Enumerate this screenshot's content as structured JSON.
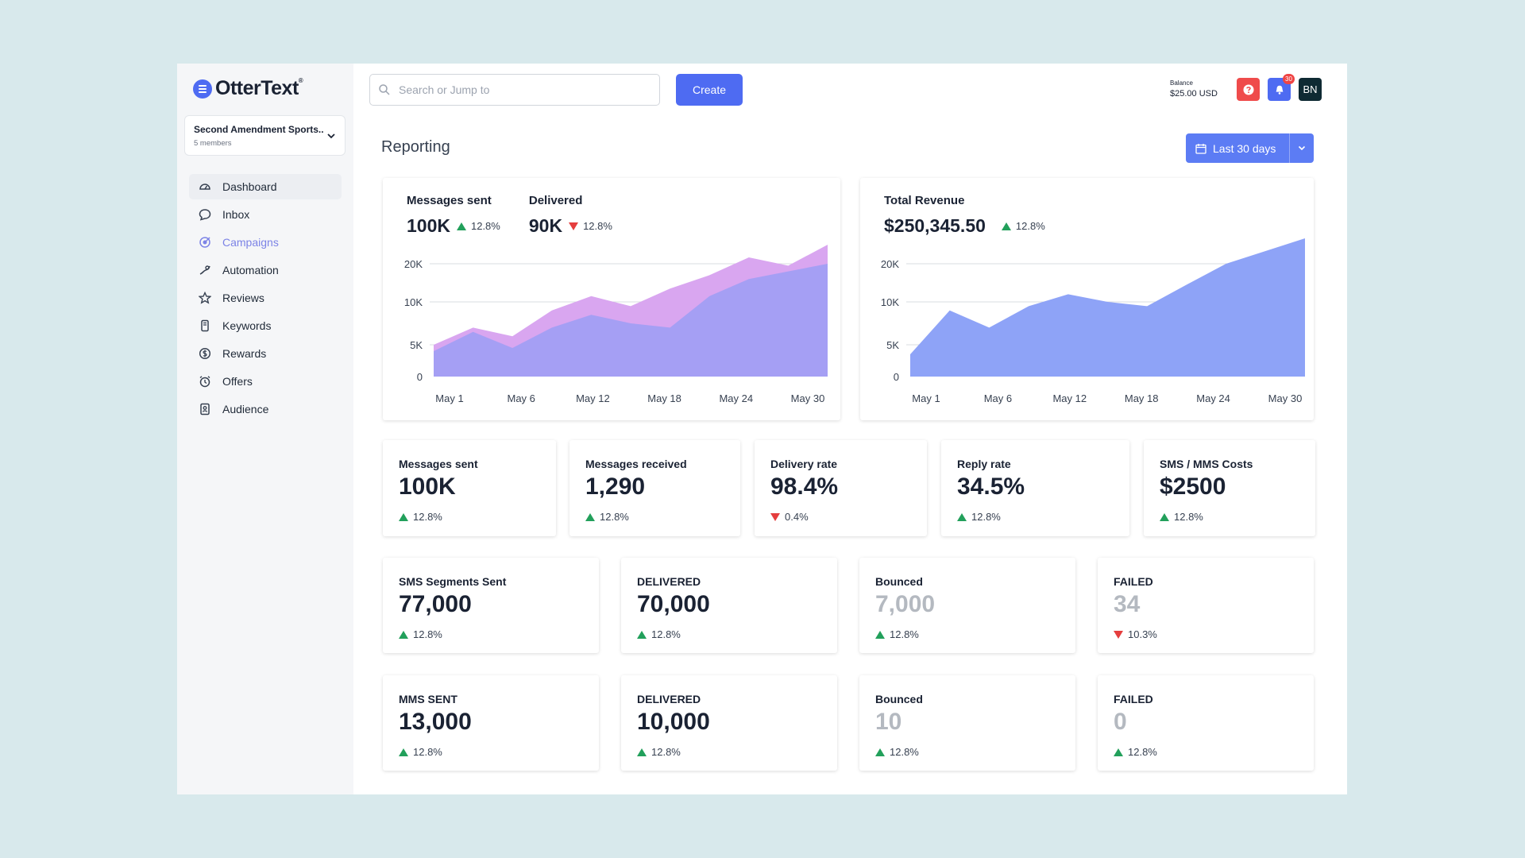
{
  "brand": {
    "name": "OtterText",
    "mark": "®"
  },
  "org": {
    "name": "Second Amendment Sports..",
    "members": "5 members"
  },
  "sidebar": {
    "items": [
      {
        "label": "Dashboard",
        "icon": "gauge-icon"
      },
      {
        "label": "Inbox",
        "icon": "chat-bubble-icon"
      },
      {
        "label": "Campaigns",
        "icon": "target-icon"
      },
      {
        "label": "Automation",
        "icon": "automation-icon"
      },
      {
        "label": "Reviews",
        "icon": "star-icon"
      },
      {
        "label": "Keywords",
        "icon": "phone-icon"
      },
      {
        "label": "Rewards",
        "icon": "dollar-coin-icon"
      },
      {
        "label": "Offers",
        "icon": "alarm-clock-icon"
      },
      {
        "label": "Audience",
        "icon": "contacts-book-icon"
      }
    ]
  },
  "topbar": {
    "search_placeholder": "Search or Jump to",
    "create_label": "Create",
    "balance_label": "Balance",
    "balance_value": "$25.00 USD",
    "notification_count": "30",
    "avatar_initials": "BN"
  },
  "page": {
    "title": "Reporting",
    "date_range": "Last 30 days"
  },
  "colors": {
    "accent": "#4e6bf2",
    "up": "#22a05b",
    "down": "#e53e3e",
    "series_light": "#d9a6f0",
    "series_dark": "#9b9df5",
    "revenue_fill": "#8ea3f7"
  },
  "messages_chart": {
    "metrics": [
      {
        "label": "Messages sent",
        "value": "100K",
        "change": "12.8%",
        "direction": "up"
      },
      {
        "label": "Delivered",
        "value": "90K",
        "change": "12.8%",
        "direction": "down"
      }
    ]
  },
  "revenue_chart": {
    "metric": {
      "label": "Total Revenue",
      "value": "$250,345.50",
      "change": "12.8%",
      "direction": "up"
    }
  },
  "chart_data": [
    {
      "type": "area",
      "x": [
        "May 1",
        "May 3",
        "May 6",
        "May 9",
        "May 12",
        "May 15",
        "May 18",
        "May 21",
        "May 24",
        "May 27",
        "May 30"
      ],
      "series": [
        {
          "values": [
            5000,
            7000,
            6000,
            9000,
            11500,
            9500,
            13500,
            17000,
            21000,
            19500,
            23000
          ]
        },
        {
          "values": [
            4000,
            6500,
            4500,
            7000,
            8500,
            7500,
            7000,
            11500,
            16000,
            18000,
            20000
          ]
        }
      ],
      "yticks": [
        "0",
        "5K",
        "10K",
        "20K"
      ],
      "xticks": [
        "May 1",
        "May 6",
        "May 12",
        "May 18",
        "May 24",
        "May 30"
      ],
      "ylim": [
        0,
        25000
      ]
    },
    {
      "type": "area",
      "x": [
        "May 1",
        "May 3",
        "May 6",
        "May 9",
        "May 12",
        "May 15",
        "May 18",
        "May 21",
        "May 24",
        "May 27",
        "May 30"
      ],
      "series": [
        {
          "values": [
            3500,
            9000,
            7000,
            9500,
            12000,
            10000,
            9500,
            14500,
            20000,
            22000,
            24000
          ]
        }
      ],
      "yticks": [
        "0",
        "5K",
        "10K",
        "20K"
      ],
      "xticks": [
        "May 1",
        "May 6",
        "May 12",
        "May 18",
        "May 24",
        "May 30"
      ],
      "ylim": [
        0,
        25000
      ]
    }
  ],
  "stats_row1": [
    {
      "label": "Messages sent",
      "value": "100K",
      "change": "12.8%",
      "direction": "up"
    },
    {
      "label": "Messages received",
      "value": "1,290",
      "change": "12.8%",
      "direction": "up"
    },
    {
      "label": "Delivery rate",
      "value": "98.4%",
      "change": "0.4%",
      "direction": "down"
    },
    {
      "label": "Reply rate",
      "value": "34.5%",
      "change": "12.8%",
      "direction": "up"
    },
    {
      "label": "SMS / MMS Costs",
      "value": "$2500",
      "change": "12.8%",
      "direction": "up"
    }
  ],
  "stats_row2": [
    {
      "label": "SMS Segments Sent",
      "value": "77,000",
      "change": "12.8%",
      "direction": "up"
    },
    {
      "label": "DELIVERED",
      "value": "70,000",
      "change": "12.8%",
      "direction": "up"
    },
    {
      "label": "Bounced",
      "value": "7,000",
      "change": "12.8%",
      "direction": "up",
      "muted": true
    },
    {
      "label": "FAILED",
      "value": "34",
      "change": "10.3%",
      "direction": "down",
      "muted": true
    }
  ],
  "stats_row3": [
    {
      "label": "MMS SENT",
      "value": "13,000",
      "change": "12.8%",
      "direction": "up"
    },
    {
      "label": "DELIVERED",
      "value": "10,000",
      "change": "12.8%",
      "direction": "up"
    },
    {
      "label": "Bounced",
      "value": "10",
      "change": "12.8%",
      "direction": "up",
      "muted": true
    },
    {
      "label": "FAILED",
      "value": "0",
      "change": "12.8%",
      "direction": "up",
      "muted": true
    }
  ]
}
